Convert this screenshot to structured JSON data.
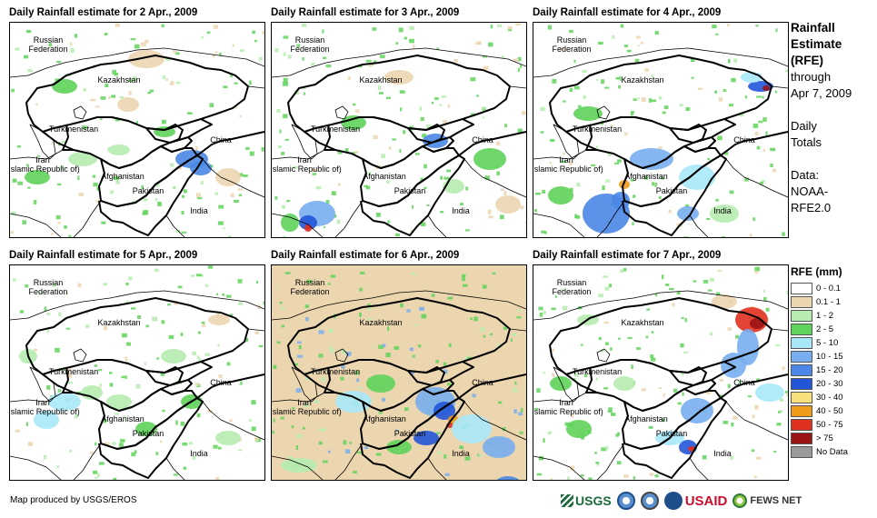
{
  "panels": [
    {
      "title": "Daily Rainfall estimate for 2 Apr., 2009",
      "bg": "#ffffff"
    },
    {
      "title": "Daily Rainfall estimate for 3 Apr., 2009",
      "bg": "#ffffff"
    },
    {
      "title": "Daily Rainfall estimate for 4 Apr., 2009",
      "bg": "#ffffff"
    },
    {
      "title": "Daily Rainfall estimate for 5 Apr., 2009",
      "bg": "#ffffff"
    },
    {
      "title": "Daily Rainfall estimate for 6 Apr., 2009",
      "bg": "#ecd6b0"
    },
    {
      "title": "Daily Rainfall estimate for 7 Apr., 2009",
      "bg": "#ffffff"
    }
  ],
  "map_labels": {
    "russia": "Russian\nFederation",
    "kazakhstan": "Kazakhstan",
    "turkmenistan": "Turkmenistan",
    "iran": "Iran\n(Islamic Republic of)",
    "afghanistan": "Afghanistan",
    "pakistan": "Pakistan",
    "china": "China",
    "india": "India"
  },
  "side": {
    "heading_line1": "Rainfall",
    "heading_line2": "Estimate",
    "heading_line3": "(RFE)",
    "through_line1": "through",
    "through_line2": "Apr 7, 2009",
    "totals_line1": "Daily",
    "totals_line2": "Totals",
    "data_line1": "Data:",
    "data_line2": "NOAA-",
    "data_line3": "RFE2.0"
  },
  "legend": {
    "title": "RFE (mm)",
    "items": [
      {
        "label": "0 - 0.1",
        "color": "#ffffff"
      },
      {
        "label": "0.1 - 1",
        "color": "#ecd6b0"
      },
      {
        "label": "1 - 2",
        "color": "#b6ecb0"
      },
      {
        "label": "2 - 5",
        "color": "#5fd35a"
      },
      {
        "label": "5 - 10",
        "color": "#a8e8f8"
      },
      {
        "label": "10 - 15",
        "color": "#78aef0"
      },
      {
        "label": "15 - 20",
        "color": "#4a87e6"
      },
      {
        "label": "20 - 30",
        "color": "#2255d8"
      },
      {
        "label": "30 - 40",
        "color": "#f8e07a"
      },
      {
        "label": "40 - 50",
        "color": "#f09a1a"
      },
      {
        "label": "50 - 75",
        "color": "#e0301e"
      },
      {
        "label": "> 75",
        "color": "#9a1414"
      },
      {
        "label": "No Data",
        "color": "#9a9a9a"
      }
    ]
  },
  "credit": "Map produced by USGS/EROS",
  "logos": {
    "usgs": "USGS",
    "noaa": "NOAA",
    "dhs": "DHS",
    "usaid": "USAID",
    "fews": "FEWS NET"
  }
}
